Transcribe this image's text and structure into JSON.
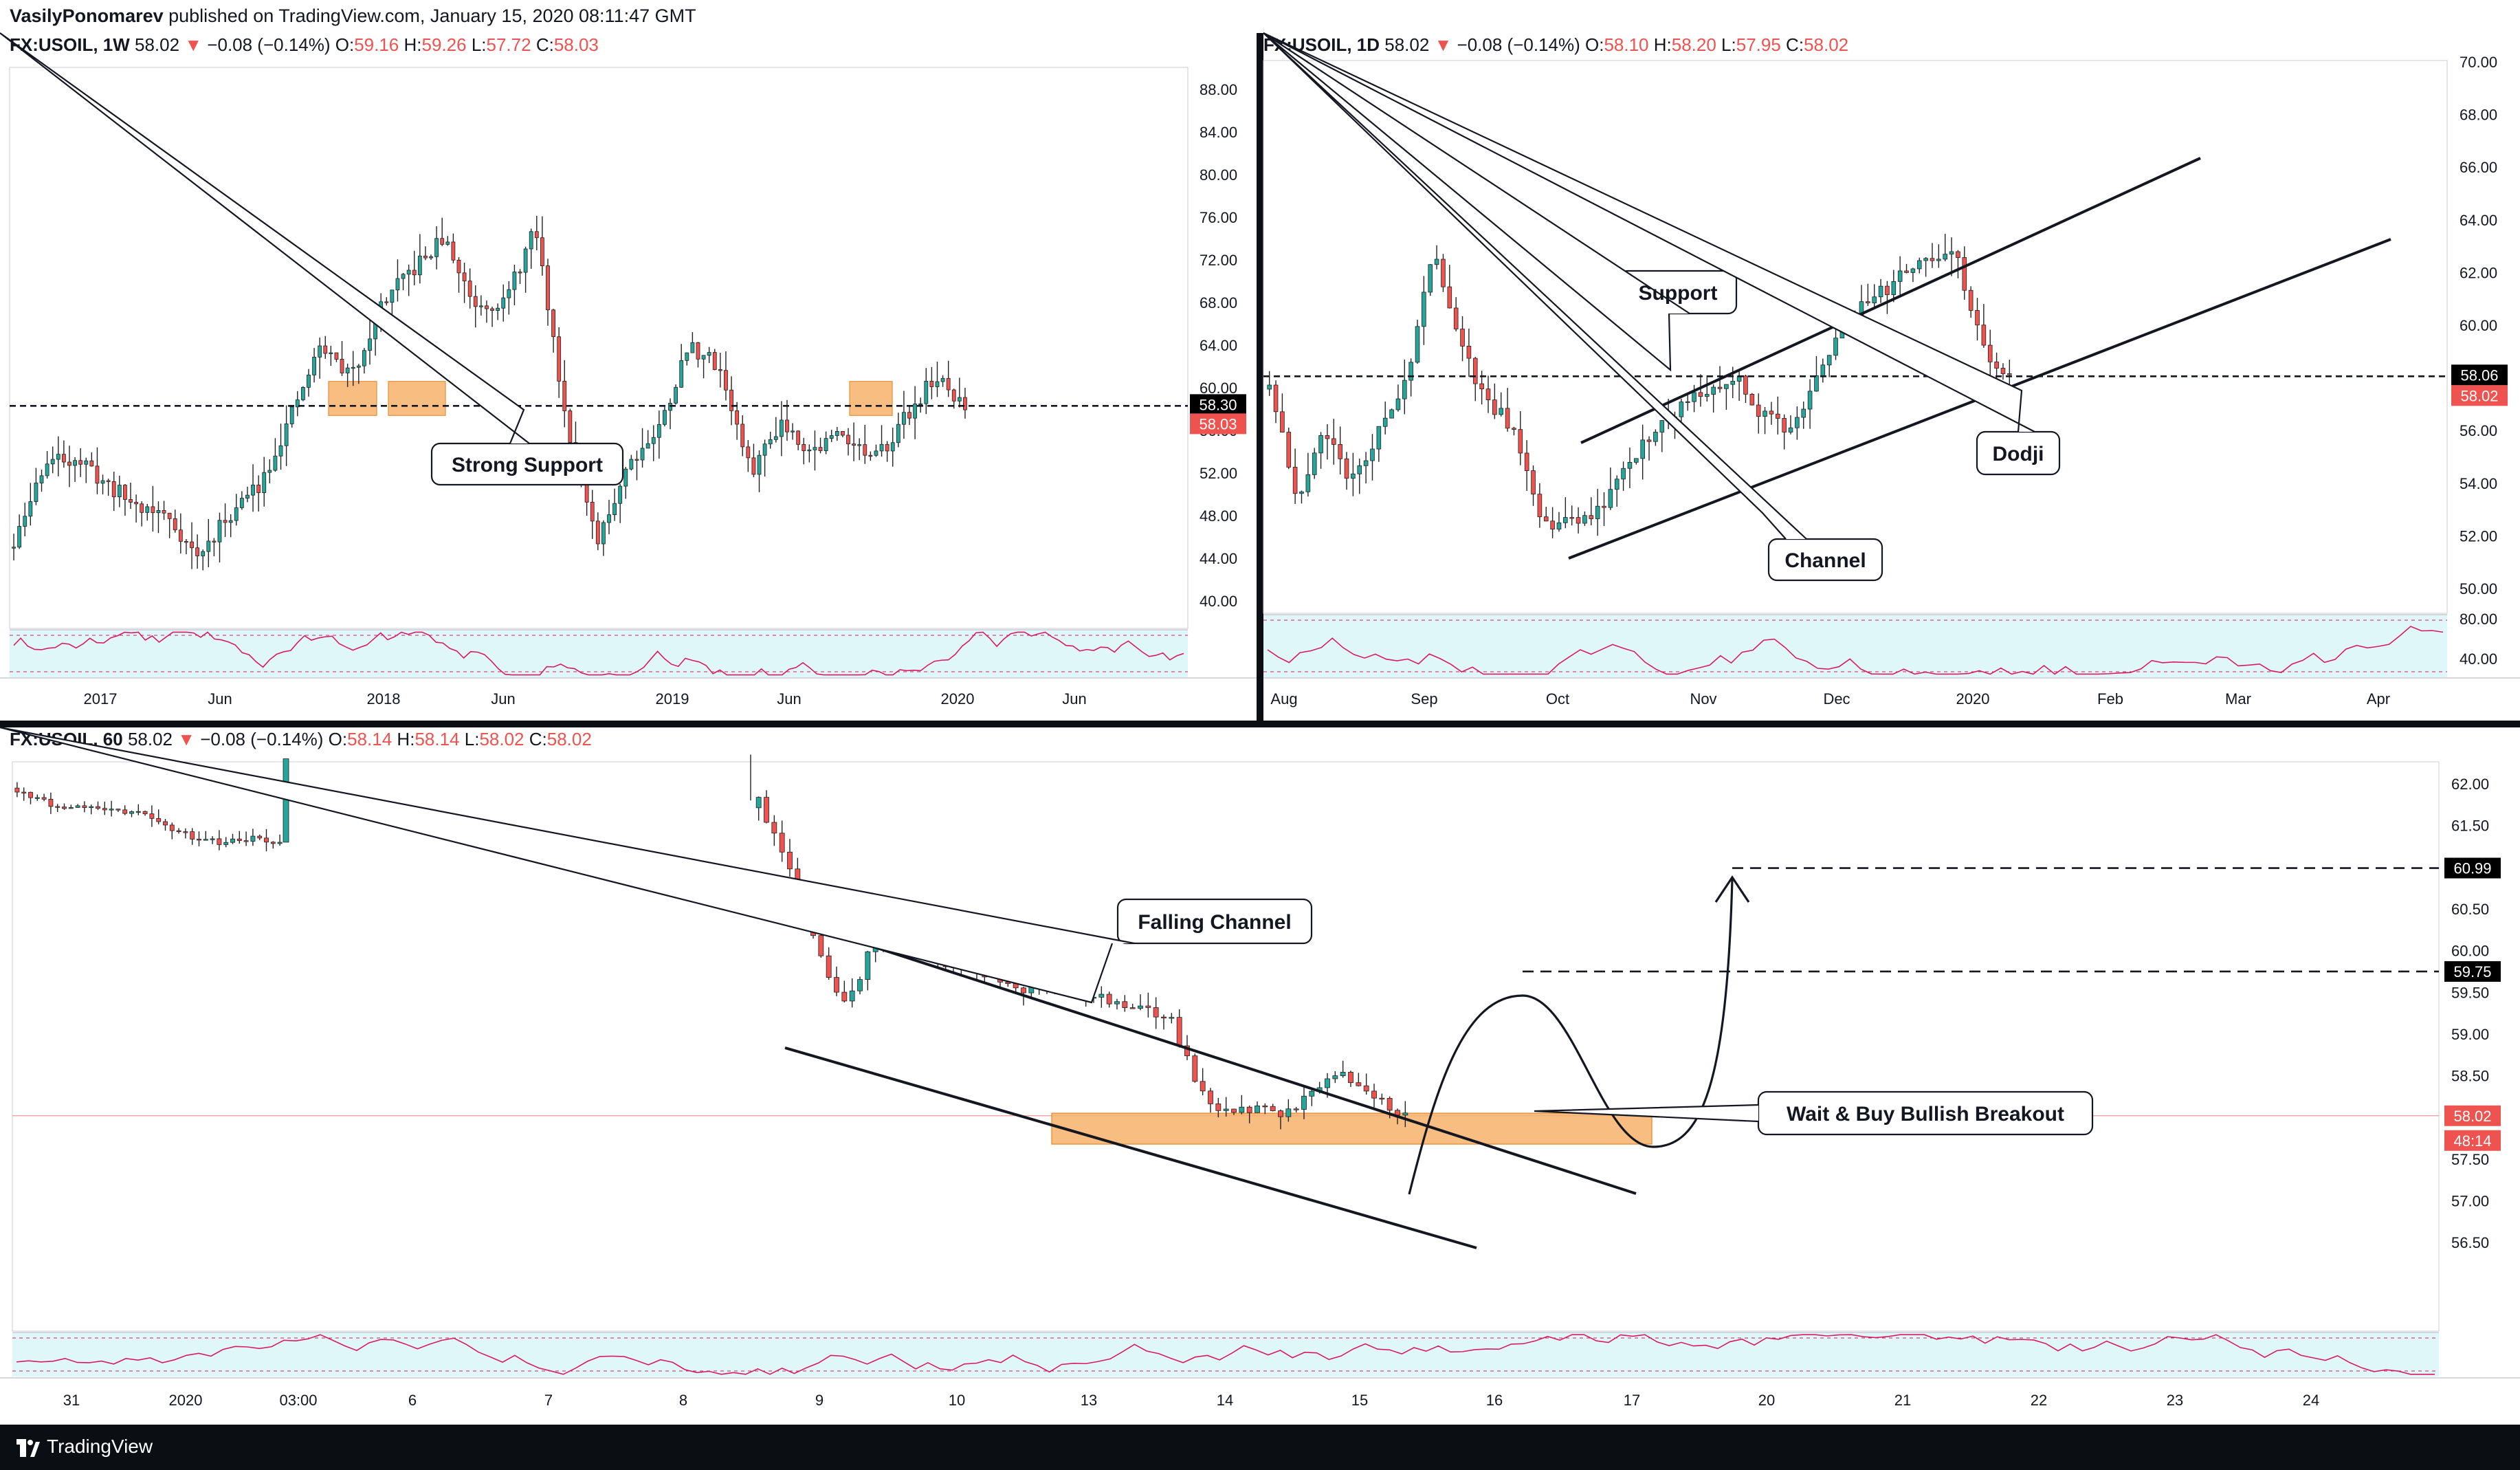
{
  "publisher": {
    "author": "VasilyPonomarev",
    "text": " published on TradingView.com, January 15, 2020 08:11:47 GMT"
  },
  "footer": {
    "brand": "TradingView"
  },
  "colors": {
    "up": "#26a69a",
    "down": "#ef5350",
    "highlight": "#f6b26b",
    "rsi_bg": "#e0f7fa",
    "rsi_line": "#d81b60"
  },
  "panels": {
    "weekly": {
      "symbol": "FX:USOIL, 1W",
      "last": "58.02",
      "change": "−0.08 (−0.14%)",
      "o": "59.16",
      "h": "59.26",
      "l": "57.72",
      "c": "58.03",
      "price_ticks": [
        "88.00",
        "84.00",
        "80.00",
        "76.00",
        "72.00",
        "68.00",
        "64.00",
        "60.00",
        "56.00",
        "52.00",
        "48.00",
        "44.00",
        "40.00"
      ],
      "time_ticks": [
        "2017",
        "Jun",
        "2018",
        "Jun",
        "2019",
        "Jun",
        "2020",
        "Jun"
      ],
      "support_label": "58.30",
      "last_label": "58.03",
      "annotation": "Strong Support"
    },
    "daily": {
      "symbol": "FX:USOIL, 1D",
      "last": "58.02",
      "change": "−0.08 (−0.14%)",
      "o": "58.10",
      "h": "58.20",
      "l": "57.95",
      "c": "58.02",
      "price_ticks": [
        "70.00",
        "68.00",
        "66.00",
        "64.00",
        "62.00",
        "60.00",
        "58.00",
        "56.00",
        "54.00",
        "52.00",
        "50.00"
      ],
      "rsi_ticks": [
        "80.00",
        "40.00"
      ],
      "time_ticks": [
        "Aug",
        "Sep",
        "Oct",
        "Nov",
        "Dec",
        "2020",
        "Feb",
        "Mar",
        "Apr"
      ],
      "support_label": "58.06",
      "last_label": "58.02",
      "annotations": [
        "Support",
        "Channel",
        "Dodji"
      ]
    },
    "hourly": {
      "symbol": "FX:USOIL, 60",
      "last": "58.02",
      "change": "−0.08 (−0.14%)",
      "o": "58.14",
      "h": "58.14",
      "l": "58.02",
      "c": "58.02",
      "price_ticks": [
        "62.00",
        "61.50",
        "61.00",
        "60.50",
        "60.00",
        "59.50",
        "59.00",
        "58.50",
        "58.00",
        "57.50",
        "57.00",
        "56.50"
      ],
      "time_ticks": [
        "31",
        "2020",
        "03:00",
        "6",
        "7",
        "8",
        "9",
        "10",
        "13",
        "14",
        "15",
        "16",
        "17",
        "20",
        "21",
        "22",
        "23",
        "24"
      ],
      "target1_label": "60.99",
      "target2_label": "59.75",
      "last_label": "58.02",
      "countdown": "48:14",
      "annotations": [
        "Falling Channel",
        "Wait & Buy Bullish Breakout"
      ]
    }
  },
  "chart_data": [
    {
      "type": "candlestick",
      "title": "FX:USOIL, 1W",
      "x_ticks": [
        "2017",
        "Jun",
        "2018",
        "Jun",
        "2019",
        "Jun",
        "2020",
        "Jun"
      ],
      "ylim": [
        36,
        90
      ],
      "approx_close_path": [
        {
          "x": "2016-10",
          "y": 45
        },
        {
          "x": "2016-12",
          "y": 53
        },
        {
          "x": "2017-01",
          "y": 53.5
        },
        {
          "x": "2017-03",
          "y": 49
        },
        {
          "x": "2017-05",
          "y": 48
        },
        {
          "x": "2017-06",
          "y": 44
        },
        {
          "x": "2017-08",
          "y": 48
        },
        {
          "x": "2017-09",
          "y": 51
        },
        {
          "x": "2017-11",
          "y": 57
        },
        {
          "x": "2018-01",
          "y": 64
        },
        {
          "x": "2018-02",
          "y": 61
        },
        {
          "x": "2018-04",
          "y": 68
        },
        {
          "x": "2018-05",
          "y": 71
        },
        {
          "x": "2018-06",
          "y": 74
        },
        {
          "x": "2018-07",
          "y": 68
        },
        {
          "x": "2018-08",
          "y": 68
        },
        {
          "x": "2018-10",
          "y": 75
        },
        {
          "x": "2018-11",
          "y": 57
        },
        {
          "x": "2018-12",
          "y": 45
        },
        {
          "x": "2019-01",
          "y": 53
        },
        {
          "x": "2019-02",
          "y": 56
        },
        {
          "x": "2019-04",
          "y": 64
        },
        {
          "x": "2019-05",
          "y": 62
        },
        {
          "x": "2019-06",
          "y": 52
        },
        {
          "x": "2019-07",
          "y": 57
        },
        {
          "x": "2019-08",
          "y": 54
        },
        {
          "x": "2019-09",
          "y": 56
        },
        {
          "x": "2019-10",
          "y": 53
        },
        {
          "x": "2019-11",
          "y": 57
        },
        {
          "x": "2019-12",
          "y": 61
        },
        {
          "x": "2020-01",
          "y": 58.03
        }
      ],
      "horizontal_lines": [
        58.3
      ],
      "annotations": [
        "Strong Support"
      ]
    },
    {
      "type": "candlestick",
      "title": "FX:USOIL, 1D",
      "x_ticks": [
        "Aug",
        "Sep",
        "Oct",
        "Nov",
        "Dec",
        "2020",
        "Feb",
        "Mar",
        "Apr"
      ],
      "ylim": [
        49,
        70
      ],
      "approx_close_path": [
        {
          "x": "2019-07-29",
          "y": 58
        },
        {
          "x": "2019-08-07",
          "y": 53
        },
        {
          "x": "2019-08-20",
          "y": 56
        },
        {
          "x": "2019-09-03",
          "y": 54
        },
        {
          "x": "2019-09-13",
          "y": 58
        },
        {
          "x": "2019-09-16",
          "y": 62.8
        },
        {
          "x": "2019-09-17",
          "y": 59
        },
        {
          "x": "2019-09-26",
          "y": 56
        },
        {
          "x": "2019-10-03",
          "y": 52.5
        },
        {
          "x": "2019-10-10",
          "y": 53
        },
        {
          "x": "2019-10-25",
          "y": 56
        },
        {
          "x": "2019-11-07",
          "y": 57
        },
        {
          "x": "2019-11-20",
          "y": 58
        },
        {
          "x": "2019-12-03",
          "y": 56
        },
        {
          "x": "2019-12-13",
          "y": 60
        },
        {
          "x": "2019-12-27",
          "y": 61.8
        },
        {
          "x": "2020-01-07",
          "y": 63
        },
        {
          "x": "2020-01-09",
          "y": 59
        },
        {
          "x": "2020-01-14",
          "y": 58.02
        }
      ],
      "horizontal_lines": [
        58.06
      ],
      "annotations": [
        "Support",
        "Channel",
        "Dodji"
      ]
    },
    {
      "type": "candlestick",
      "title": "FX:USOIL, 60",
      "x_ticks": [
        "31",
        "2020",
        "03:00",
        "6",
        "7",
        "8",
        "9",
        "10",
        "13",
        "14",
        "15",
        "16",
        "17",
        "20",
        "21",
        "22",
        "23",
        "24"
      ],
      "ylim": [
        56.0,
        62.3
      ],
      "approx_close_path": [
        {
          "x": "2019-12-31",
          "y": 61.7
        },
        {
          "x": "2020-01-03",
          "y": 61.3
        },
        {
          "x": "2020-01-03 03:00",
          "y": 62.1
        },
        {
          "x": "2020-01-08",
          "y": 62.3
        },
        {
          "x": "2020-01-08 12:00",
          "y": 59.4
        },
        {
          "x": "2020-01-09",
          "y": 60.1
        },
        {
          "x": "2020-01-10",
          "y": 59.6
        },
        {
          "x": "2020-01-13",
          "y": 58.5
        },
        {
          "x": "2020-01-14",
          "y": 58.5
        },
        {
          "x": "2020-01-15",
          "y": 58.02
        }
      ],
      "horizontal_lines": [
        60.99,
        59.75,
        58.02
      ],
      "annotations": [
        "Falling Channel",
        "Wait & Buy Bullish Breakout"
      ]
    }
  ]
}
